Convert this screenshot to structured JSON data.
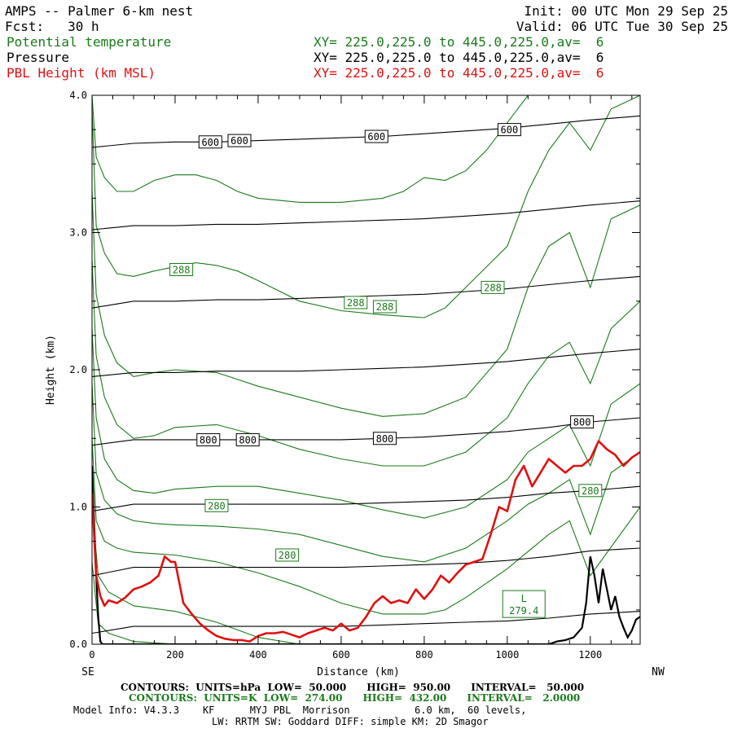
{
  "header": {
    "title": "AMPS -- Palmer 6-km nest",
    "forecast": "Fcst:   30 h",
    "init": "Init: 00 UTC Mon 29 Sep 25",
    "valid": "Valid: 06 UTC Tue 30 Sep 25",
    "fields": [
      {
        "name": "Potential temperature",
        "xy": "XY= 225.0,225.0 to 445.0,225.0,av=  6",
        "color": "#1a7a1a"
      },
      {
        "name": "Pressure",
        "xy": "XY= 225.0,225.0 to 445.0,225.0,av=  6",
        "color": "#000000"
      },
      {
        "name": "PBL Height (km MSL)",
        "xy": "XY= 225.0,225.0 to 445.0,225.0,av=  6",
        "color": "#e01010"
      }
    ]
  },
  "chart_data": {
    "type": "line",
    "xlabel": "Distance (km)",
    "ylabel": "Height (km)",
    "xlim": [
      0,
      1320
    ],
    "ylim": [
      0,
      4.0
    ],
    "x_ticks": [
      0,
      200,
      400,
      600,
      800,
      1000,
      1200
    ],
    "x_tick_labels": [
      "0",
      "200",
      "400",
      "600",
      "800",
      "1000",
      "1200"
    ],
    "y_ticks": [
      0,
      1.0,
      2.0,
      3.0,
      4.0
    ],
    "y_tick_labels": [
      "0.0",
      "1.0",
      "2.0",
      "3.0",
      "4.0"
    ],
    "left_end_label": "SE",
    "right_end_label": "NW",
    "pressure_levels": [
      {
        "hpa": 950,
        "x": [
          0,
          100,
          200,
          300,
          400,
          500,
          600,
          700,
          800,
          900,
          1000,
          1100,
          1200,
          1320
        ],
        "y": [
          0.08,
          0.13,
          0.13,
          0.13,
          0.13,
          0.13,
          0.13,
          0.14,
          0.15,
          0.16,
          0.17,
          0.19,
          0.22,
          0.24
        ]
      },
      {
        "hpa": 900,
        "x": [
          0,
          100,
          200,
          300,
          400,
          500,
          600,
          700,
          800,
          900,
          1000,
          1100,
          1200,
          1320
        ],
        "y": [
          0.5,
          0.56,
          0.56,
          0.56,
          0.56,
          0.56,
          0.56,
          0.57,
          0.58,
          0.59,
          0.61,
          0.64,
          0.68,
          0.7
        ]
      },
      {
        "hpa": 850,
        "x": [
          0,
          100,
          200,
          300,
          400,
          500,
          600,
          700,
          800,
          900,
          1000,
          1100,
          1200,
          1320
        ],
        "y": [
          0.97,
          1.02,
          1.02,
          1.02,
          1.02,
          1.02,
          1.02,
          1.03,
          1.04,
          1.05,
          1.07,
          1.1,
          1.12,
          1.15
        ]
      },
      {
        "hpa": 800,
        "x": [
          0,
          100,
          200,
          300,
          400,
          500,
          600,
          700,
          800,
          900,
          1000,
          1100,
          1200,
          1320
        ],
        "y": [
          1.45,
          1.49,
          1.49,
          1.49,
          1.49,
          1.49,
          1.49,
          1.5,
          1.51,
          1.53,
          1.55,
          1.58,
          1.62,
          1.65
        ]
      },
      {
        "hpa": 750,
        "x": [
          0,
          100,
          200,
          300,
          400,
          500,
          600,
          700,
          800,
          900,
          1000,
          1100,
          1200,
          1320
        ],
        "y": [
          1.95,
          1.98,
          1.98,
          1.99,
          1.99,
          1.99,
          2.0,
          2.01,
          2.02,
          2.04,
          2.06,
          2.09,
          2.12,
          2.15
        ]
      },
      {
        "hpa": 700,
        "x": [
          0,
          100,
          200,
          300,
          400,
          500,
          600,
          700,
          800,
          900,
          1000,
          1100,
          1200,
          1320
        ],
        "y": [
          2.45,
          2.5,
          2.5,
          2.51,
          2.51,
          2.52,
          2.53,
          2.54,
          2.55,
          2.57,
          2.59,
          2.62,
          2.65,
          2.68
        ]
      },
      {
        "hpa": 650,
        "x": [
          0,
          100,
          200,
          300,
          400,
          500,
          600,
          700,
          800,
          900,
          1000,
          1100,
          1200,
          1320
        ],
        "y": [
          3.02,
          3.05,
          3.05,
          3.06,
          3.06,
          3.07,
          3.08,
          3.09,
          3.1,
          3.12,
          3.14,
          3.17,
          3.2,
          3.23
        ]
      },
      {
        "hpa": 600,
        "x": [
          0,
          100,
          200,
          300,
          400,
          500,
          600,
          700,
          800,
          900,
          1000,
          1100,
          1200,
          1320
        ],
        "y": [
          3.62,
          3.65,
          3.66,
          3.66,
          3.67,
          3.68,
          3.69,
          3.7,
          3.72,
          3.74,
          3.76,
          3.79,
          3.82,
          3.85
        ]
      }
    ],
    "pressure_labels": [
      {
        "text": "600",
        "x": 285,
        "y": 3.66
      },
      {
        "text": "600",
        "x": 355,
        "y": 3.67
      },
      {
        "text": "600",
        "x": 685,
        "y": 3.7
      },
      {
        "text": "600",
        "x": 1005,
        "y": 3.75
      },
      {
        "text": "800",
        "x": 280,
        "y": 1.49
      },
      {
        "text": "800",
        "x": 375,
        "y": 1.49
      },
      {
        "text": "800",
        "x": 705,
        "y": 1.5
      },
      {
        "text": "800",
        "x": 1180,
        "y": 1.62
      }
    ],
    "theta_contours": [
      {
        "x": [
          0,
          15,
          40,
          100,
          200,
          300,
          400,
          500,
          600,
          700,
          800,
          850,
          900,
          1000,
          1100,
          1150,
          1320
        ],
        "y": [
          0.6,
          0.15,
          0.08,
          0.02,
          0,
          0,
          0,
          0,
          0,
          0,
          0,
          0,
          0,
          0,
          0,
          0,
          0
        ]
      },
      {
        "x": [
          0,
          15,
          40,
          100,
          200,
          300,
          400,
          500,
          600,
          700,
          750,
          800
        ],
        "y": [
          1.0,
          0.5,
          0.38,
          0.28,
          0.24,
          0.16,
          0.05,
          0,
          0,
          0,
          0,
          0
        ]
      },
      {
        "x": [
          0,
          10,
          30,
          60,
          100,
          150,
          200,
          300,
          400,
          500,
          600,
          700,
          800,
          850,
          900,
          1000,
          1100,
          1150,
          1200,
          1320
        ],
        "y": [
          1.5,
          0.9,
          0.75,
          0.7,
          0.67,
          0.66,
          0.65,
          0.6,
          0.52,
          0.42,
          0.3,
          0.22,
          0.22,
          0.25,
          0.34,
          0.55,
          0.8,
          0.9,
          0.5,
          1.0
        ]
      },
      {
        "x": [
          0,
          10,
          30,
          60,
          100,
          150,
          200,
          300,
          400,
          500,
          600,
          700,
          800,
          900,
          1000,
          1050,
          1100,
          1150,
          1200,
          1250,
          1320
        ],
        "y": [
          1.9,
          1.25,
          1.05,
          0.95,
          0.9,
          0.88,
          0.87,
          0.86,
          0.84,
          0.8,
          0.72,
          0.64,
          0.6,
          0.7,
          0.9,
          1.02,
          1.1,
          1.2,
          0.8,
          1.25,
          1.4
        ]
      },
      {
        "x": [
          0,
          10,
          30,
          60,
          100,
          150,
          200,
          300,
          400,
          500,
          600,
          700,
          800,
          900,
          1000,
          1050,
          1100,
          1150,
          1200,
          1250,
          1320
        ],
        "y": [
          2.3,
          1.65,
          1.35,
          1.2,
          1.12,
          1.1,
          1.13,
          1.15,
          1.15,
          1.1,
          1.05,
          0.98,
          0.92,
          1.0,
          1.2,
          1.4,
          1.5,
          1.6,
          1.3,
          1.75,
          1.9
        ]
      },
      {
        "x": [
          0,
          10,
          30,
          60,
          100,
          150,
          200,
          300,
          400,
          500,
          600,
          700,
          800,
          900,
          1000,
          1050,
          1100,
          1150,
          1200,
          1250,
          1320
        ],
        "y": [
          2.8,
          2.1,
          1.8,
          1.6,
          1.5,
          1.52,
          1.58,
          1.6,
          1.52,
          1.42,
          1.35,
          1.3,
          1.3,
          1.4,
          1.65,
          1.9,
          2.1,
          2.2,
          1.9,
          2.3,
          2.5
        ]
      },
      {
        "x": [
          0,
          10,
          30,
          60,
          100,
          150,
          200,
          300,
          400,
          500,
          600,
          700,
          800,
          900,
          1000,
          1050,
          1100,
          1150,
          1200,
          1250,
          1320
        ],
        "y": [
          3.3,
          2.55,
          2.25,
          2.05,
          1.95,
          1.98,
          2.0,
          1.98,
          1.88,
          1.8,
          1.72,
          1.66,
          1.68,
          1.8,
          2.15,
          2.6,
          2.9,
          3.0,
          2.6,
          3.1,
          3.2
        ]
      },
      {
        "x": [
          0,
          10,
          30,
          60,
          100,
          150,
          200,
          250,
          300,
          350,
          400,
          500,
          600,
          700,
          800,
          850,
          900,
          1000,
          1050,
          1100,
          1150,
          1200,
          1250,
          1320
        ],
        "y": [
          3.9,
          3.05,
          2.85,
          2.7,
          2.68,
          2.72,
          2.75,
          2.78,
          2.76,
          2.72,
          2.65,
          2.5,
          2.43,
          2.4,
          2.38,
          2.45,
          2.6,
          2.9,
          3.3,
          3.6,
          3.8,
          3.6,
          3.9,
          4.0
        ]
      },
      {
        "x": [
          0,
          10,
          30,
          60,
          100,
          150,
          200,
          250,
          300,
          350,
          400,
          500,
          600,
          700,
          750,
          800,
          850,
          900,
          950,
          1000,
          1050,
          1100
        ],
        "y": [
          4.0,
          3.55,
          3.4,
          3.3,
          3.3,
          3.38,
          3.42,
          3.42,
          3.38,
          3.3,
          3.25,
          3.22,
          3.22,
          3.25,
          3.3,
          3.4,
          3.38,
          3.45,
          3.6,
          3.8,
          4.0,
          4.0
        ]
      }
    ],
    "theta_labels": [
      {
        "text": "288",
        "x": 215,
        "y": 2.73
      },
      {
        "text": "288",
        "x": 635,
        "y": 2.49
      },
      {
        "text": "288",
        "x": 705,
        "y": 2.46
      },
      {
        "text": "288",
        "x": 965,
        "y": 2.6
      },
      {
        "text": "280",
        "x": 300,
        "y": 1.01
      },
      {
        "text": "280",
        "x": 470,
        "y": 0.65
      },
      {
        "text": "280",
        "x": 1200,
        "y": 1.12
      }
    ],
    "min_marker": {
      "letter": "L",
      "value": "279.4",
      "x": 1040,
      "y": 0.29
    },
    "pbl_height": {
      "x": [
        0,
        10,
        20,
        30,
        40,
        60,
        80,
        100,
        120,
        140,
        160,
        175,
        190,
        200,
        220,
        240,
        260,
        280,
        300,
        320,
        340,
        360,
        380,
        400,
        420,
        440,
        460,
        480,
        500,
        520,
        540,
        560,
        580,
        600,
        620,
        640,
        660,
        680,
        700,
        720,
        740,
        760,
        780,
        800,
        820,
        840,
        860,
        880,
        900,
        920,
        940,
        960,
        980,
        1000,
        1020,
        1040,
        1060,
        1080,
        1100,
        1120,
        1140,
        1160,
        1180,
        1200,
        1220,
        1240,
        1260,
        1280,
        1300,
        1320
      ],
      "y": [
        1.1,
        0.5,
        0.35,
        0.28,
        0.32,
        0.3,
        0.34,
        0.4,
        0.42,
        0.45,
        0.5,
        0.64,
        0.6,
        0.6,
        0.3,
        0.22,
        0.15,
        0.1,
        0.06,
        0.04,
        0.03,
        0.03,
        0.02,
        0.06,
        0.08,
        0.08,
        0.09,
        0.07,
        0.05,
        0.08,
        0.1,
        0.12,
        0.1,
        0.15,
        0.1,
        0.12,
        0.2,
        0.3,
        0.35,
        0.3,
        0.32,
        0.3,
        0.4,
        0.33,
        0.4,
        0.5,
        0.45,
        0.52,
        0.58,
        0.6,
        0.62,
        0.8,
        1.0,
        0.97,
        1.2,
        1.3,
        1.15,
        1.25,
        1.35,
        1.3,
        1.25,
        1.3,
        1.3,
        1.35,
        1.48,
        1.42,
        1.38,
        1.3,
        1.36,
        1.4
      ]
    },
    "terrain": {
      "x": [
        0,
        5,
        10,
        15,
        20,
        25,
        1100,
        1120,
        1140,
        1160,
        1180,
        1190,
        1200,
        1210,
        1220,
        1230,
        1240,
        1250,
        1260,
        1270,
        1280,
        1290,
        1300,
        1310,
        1320
      ],
      "y": [
        1.3,
        0.9,
        0.5,
        0.2,
        0.02,
        0,
        0,
        0.02,
        0.03,
        0.05,
        0.12,
        0.3,
        0.64,
        0.5,
        0.3,
        0.55,
        0.4,
        0.25,
        0.35,
        0.2,
        0.12,
        0.05,
        0.1,
        0.18,
        0.2
      ]
    }
  },
  "footer": {
    "pressure_contours": "CONTOURS:  UNITS=hPa  LOW=  50.000      HIGH=  950.00      INTERVAL=   50.000",
    "theta_contours": "CONTOURS:  UNITS=K  LOW=  274.00      HIGH=  432.00      INTERVAL=   2.0000",
    "model_info": "Model Info: V4.3.3    KF      MYJ PBL  Morrison           6.0 km,  60 levels,",
    "physics": "LW: RRTM SW: Goddard DIFF: simple KM: 2D Smagor"
  },
  "colors": {
    "theta": "#1a7a1a",
    "pressure": "#000000",
    "pbl": "#e01010",
    "terrain": "#000000"
  }
}
